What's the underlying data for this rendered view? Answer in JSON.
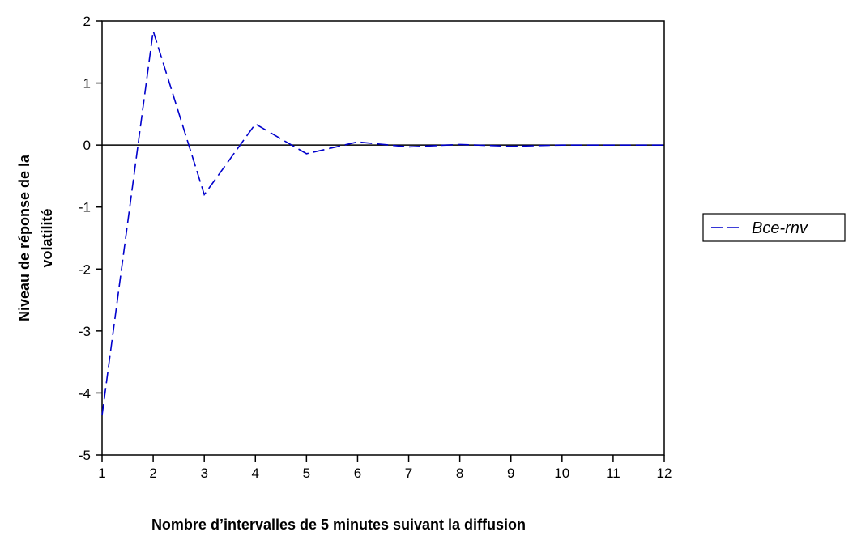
{
  "chart_data": {
    "type": "line",
    "xlabel": "Nombre d’intervalles de 5 minutes suivant la diffusion",
    "ylabel": [
      "Niveau de réponse de la",
      "volatilité"
    ],
    "x": [
      1,
      2,
      3,
      4,
      5,
      6,
      7,
      8,
      9,
      10,
      11,
      12
    ],
    "series": [
      {
        "name": "Bce-rnv",
        "color": "#0000cc",
        "values": [
          -4.36,
          1.84,
          -0.8,
          0.34,
          -0.14,
          0.05,
          -0.03,
          0.01,
          -0.02,
          0,
          0,
          0
        ]
      }
    ],
    "xlim": [
      1,
      12
    ],
    "xticks": [
      1,
      2,
      3,
      4,
      5,
      6,
      7,
      8,
      9,
      10,
      11,
      12
    ],
    "ylim": [
      -5,
      2
    ],
    "yticks": [
      -5,
      -4,
      -3,
      -2,
      -1,
      0,
      1,
      2
    ],
    "reference_line": 0,
    "grid": false,
    "legend": "right"
  }
}
